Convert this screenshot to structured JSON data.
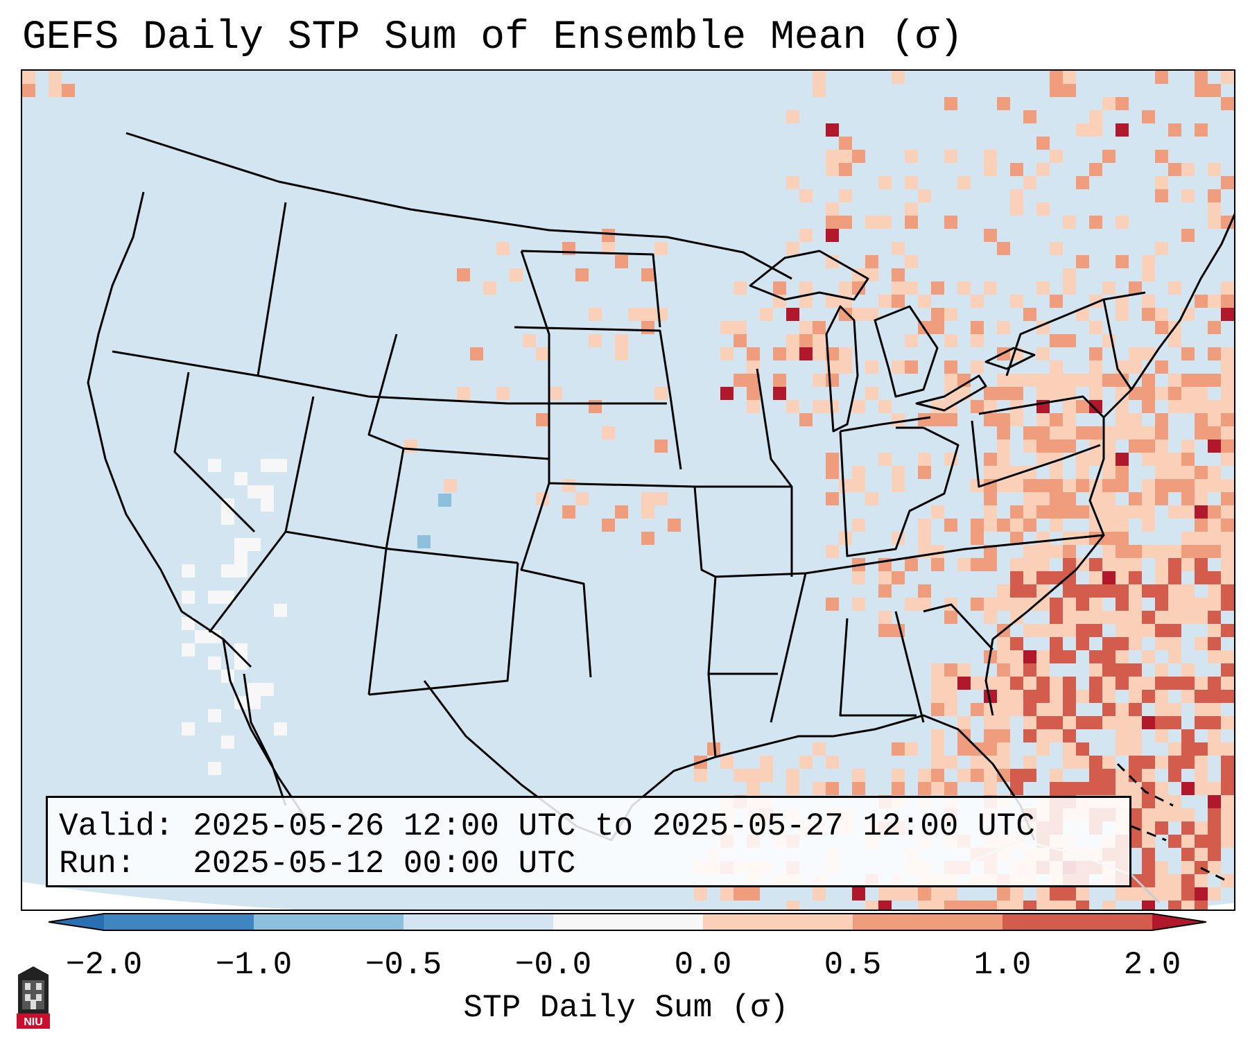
{
  "title": "GEFS Daily STP Sum of Ensemble Mean (σ)",
  "info": {
    "valid_line": "Valid: 2025-05-26 12:00 UTC to 2025-05-27 12:00 UTC",
    "run_line": "Run:   2025-05-12 00:00 UTC"
  },
  "colorbar": {
    "label": "STP Daily Sum (σ)",
    "ticks": [
      "−2.0",
      "−1.0",
      "−0.5",
      "−0.0",
      "0.0",
      "0.5",
      "1.0",
      "2.0"
    ],
    "colors": {
      "below_min": "#2b6fb3",
      "bin_1": "#3f86c0",
      "bin_2": "#8dc0dd",
      "bin_3": "#d2e5f0",
      "bin_4": "#f7f7f7",
      "bin_5": "#fbd0b9",
      "bin_6": "#f09d7e",
      "bin_7": "#d35c4c",
      "above_max": "#b2182b"
    }
  },
  "map": {
    "background_color": "#d2e5f0",
    "outline_color": "#000000"
  },
  "logo": {
    "text": "NIU"
  }
}
